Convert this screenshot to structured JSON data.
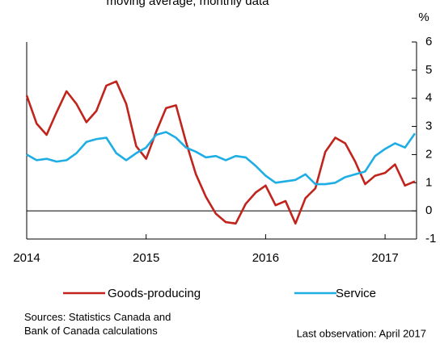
{
  "chart_data": {
    "type": "line",
    "subtitle": "moving average, monthly data",
    "y_unit": "%",
    "x": [
      "2014-01",
      "2014-02",
      "2014-03",
      "2014-04",
      "2014-05",
      "2014-06",
      "2014-07",
      "2014-08",
      "2014-09",
      "2014-10",
      "2014-11",
      "2014-12",
      "2015-01",
      "2015-02",
      "2015-03",
      "2015-04",
      "2015-05",
      "2015-06",
      "2015-07",
      "2015-08",
      "2015-09",
      "2015-10",
      "2015-11",
      "2015-12",
      "2016-01",
      "2016-02",
      "2016-03",
      "2016-04",
      "2016-05",
      "2016-06",
      "2016-07",
      "2016-08",
      "2016-09",
      "2016-10",
      "2016-11",
      "2016-12",
      "2017-01",
      "2017-02",
      "2017-03",
      "2017-04"
    ],
    "series": [
      {
        "name": "Goods-producing",
        "color": "#c0241c",
        "values": [
          4.1,
          3.1,
          2.7,
          3.5,
          4.25,
          3.8,
          3.15,
          3.55,
          4.45,
          4.6,
          3.8,
          2.3,
          1.85,
          2.8,
          3.65,
          3.75,
          2.45,
          1.3,
          0.5,
          -0.1,
          -0.4,
          -0.45,
          0.25,
          0.65,
          0.9,
          0.2,
          0.35,
          -0.45,
          0.45,
          0.8,
          2.1,
          2.6,
          2.4,
          1.75,
          0.95,
          1.25,
          1.35,
          1.65,
          0.9,
          1.05
        ]
      },
      {
        "name": "Service",
        "color": "#1eaee4",
        "values": [
          2.0,
          1.8,
          1.85,
          1.75,
          1.8,
          2.05,
          2.45,
          2.55,
          2.6,
          2.05,
          1.8,
          2.05,
          2.25,
          2.7,
          2.8,
          2.6,
          2.25,
          2.1,
          1.9,
          1.95,
          1.8,
          1.95,
          1.9,
          1.6,
          1.25,
          1.0,
          1.05,
          1.1,
          1.3,
          0.95,
          0.95,
          1.0,
          1.2,
          1.3,
          1.4,
          1.95,
          2.2,
          2.4,
          2.25,
          2.75
        ]
      }
    ],
    "xlim": [
      "2014-01",
      "2017-04"
    ],
    "xticks": [
      {
        "value": "2014-01",
        "label": "2014"
      },
      {
        "value": "2015-01",
        "label": "2015"
      },
      {
        "value": "2016-01",
        "label": "2016"
      },
      {
        "value": "2017-01",
        "label": "2017"
      }
    ],
    "ylim": [
      -1,
      6
    ],
    "yticks": [
      -1,
      0,
      1,
      2,
      3,
      4,
      5,
      6
    ],
    "source": "Sources: Statistics Canada and Bank of Canada calculations",
    "note": "Last observation: April 2017"
  }
}
